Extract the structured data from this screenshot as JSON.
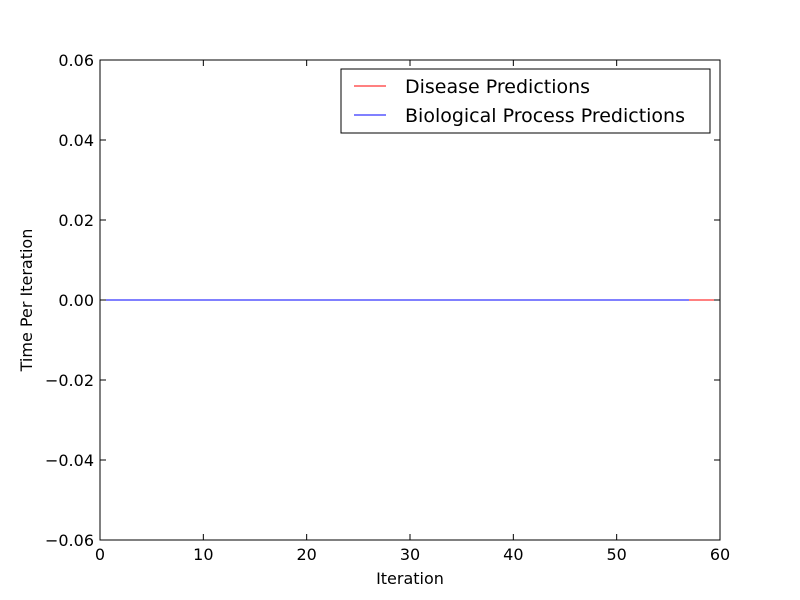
{
  "chart_data": {
    "type": "line",
    "title": "",
    "xlabel": "Iteration",
    "ylabel": "Time Per Iteration",
    "xlim": [
      0,
      60
    ],
    "ylim": [
      -0.06,
      0.06
    ],
    "x_ticks": [
      0,
      10,
      20,
      30,
      40,
      50,
      60
    ],
    "x_tick_labels": [
      "0",
      "10",
      "20",
      "30",
      "40",
      "50",
      "60"
    ],
    "y_ticks": [
      -0.06,
      -0.04,
      -0.02,
      0.0,
      0.02,
      0.04,
      0.06
    ],
    "y_tick_labels": [
      "−0.06",
      "−0.04",
      "−0.02",
      "0.00",
      "0.02",
      "0.04",
      "0.06"
    ],
    "grid": false,
    "legend_position": "top-right",
    "series": [
      {
        "name": "Disease Predictions",
        "color": "#ff0000",
        "x": [
          0,
          60
        ],
        "y": [
          0,
          0
        ]
      },
      {
        "name": "Biological Process Predictions",
        "color": "#0000ff",
        "x": [
          0,
          57
        ],
        "y": [
          0,
          0
        ]
      }
    ]
  }
}
